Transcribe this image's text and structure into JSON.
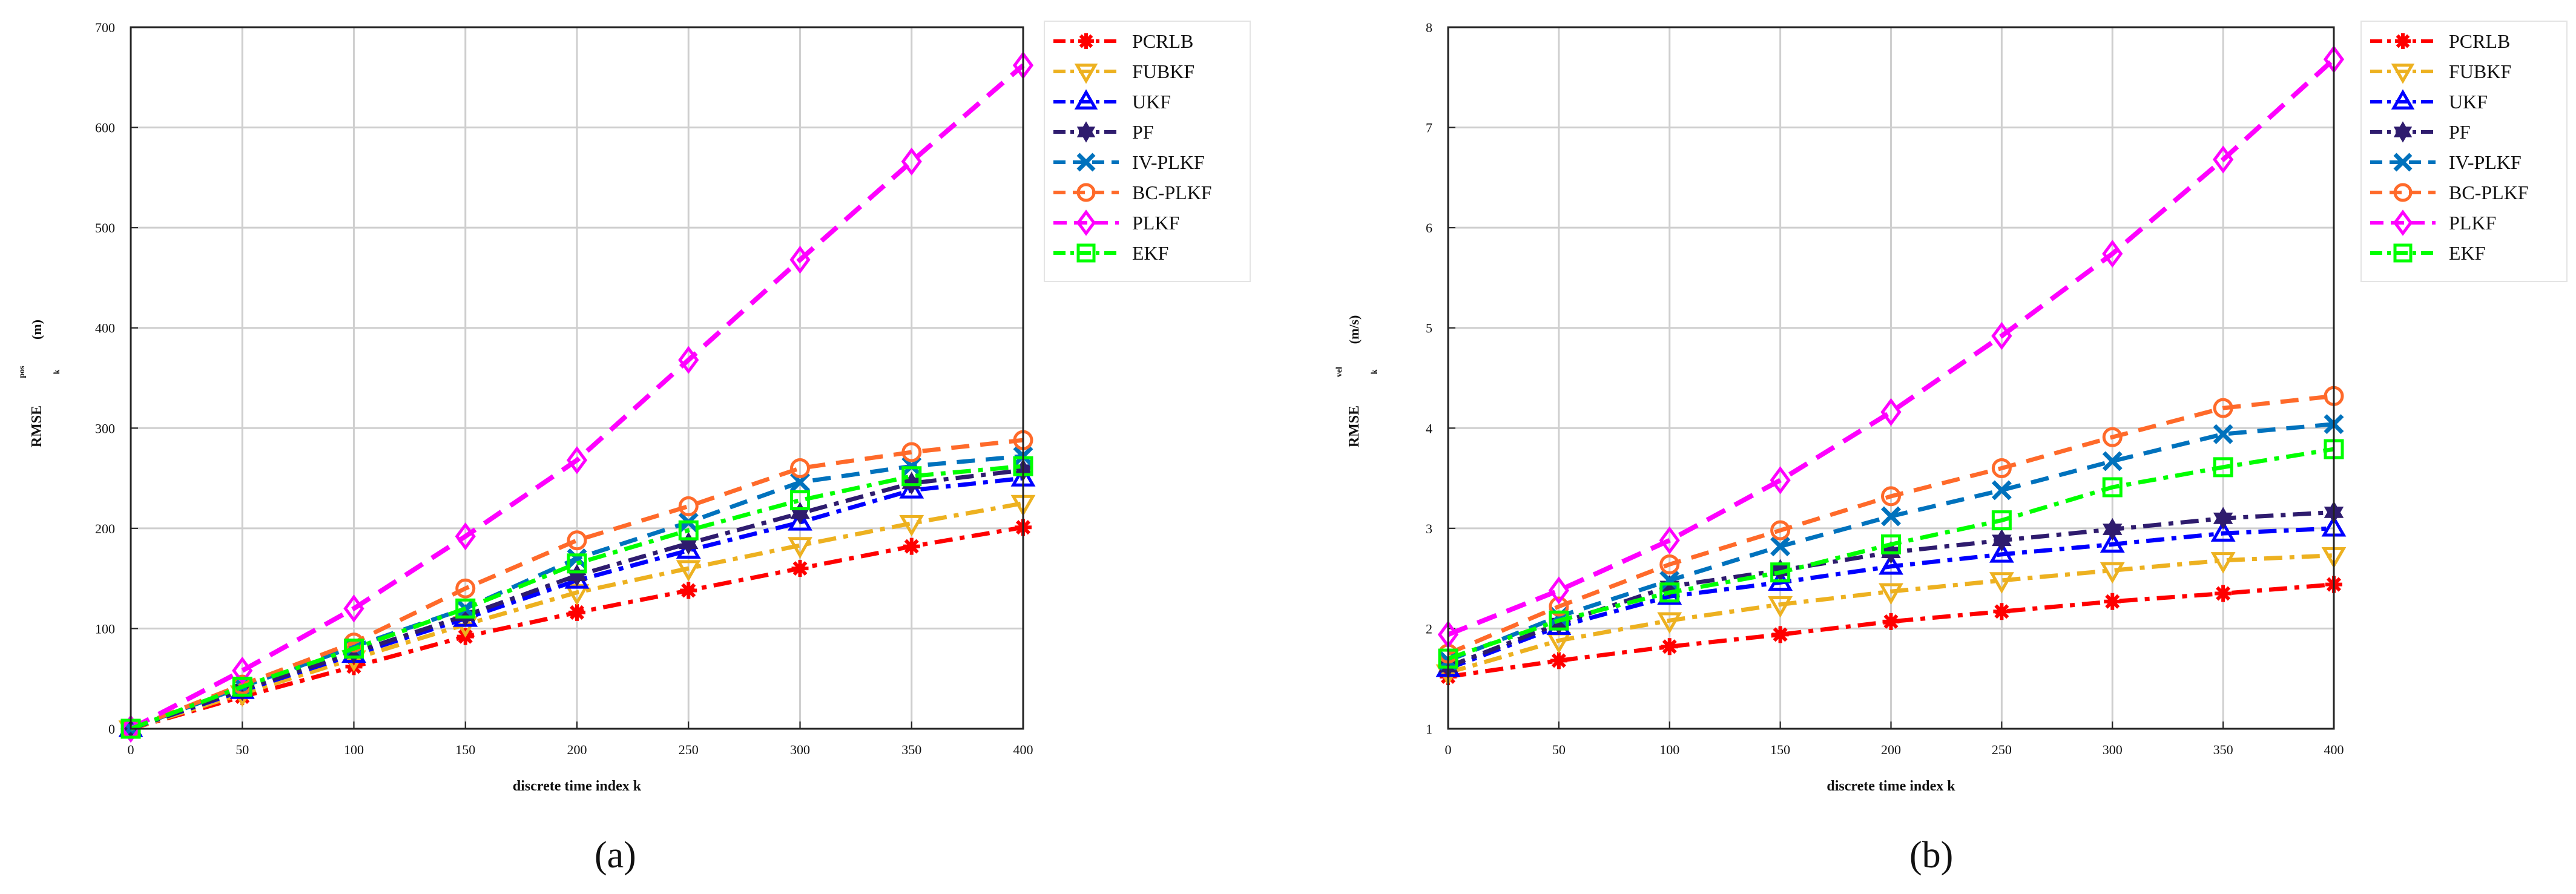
{
  "charts": [
    {
      "id": "a",
      "caption": "(a)",
      "type": "line",
      "title": "",
      "xlabel": "discrete time index k",
      "ylabel": "RMSE",
      "ylabel_sup": "pos",
      "ylabel_sub": "k",
      "ylabel_unit": "(m)",
      "xlim": [
        0,
        400
      ],
      "ylim": [
        0,
        700
      ],
      "x_ticks": [
        0,
        50,
        100,
        150,
        200,
        250,
        300,
        350,
        400
      ],
      "y_ticks": [
        0,
        100,
        200,
        300,
        400,
        500,
        600,
        700
      ],
      "grid": true,
      "legend_position": "outside-right",
      "x": [
        0,
        50,
        100,
        150,
        200,
        250,
        300,
        350,
        400
      ],
      "series": [
        {
          "name": "PCRLB",
          "color": "#ff0000",
          "marker": "asterisk",
          "values": [
            0,
            32,
            62,
            92,
            116,
            138,
            160,
            182,
            201
          ]
        },
        {
          "name": "FUBKF",
          "color": "#edb120",
          "marker": "triangle-down",
          "values": [
            0,
            35,
            70,
            104,
            136,
            160,
            183,
            205,
            225
          ]
        },
        {
          "name": "UKF",
          "color": "#0000ff",
          "marker": "triangle-up",
          "values": [
            0,
            38,
            74,
            110,
            148,
            178,
            206,
            238,
            250
          ]
        },
        {
          "name": "PF",
          "color": "#2f1c6e",
          "marker": "hexagram",
          "values": [
            0,
            39,
            76,
            113,
            153,
            185,
            215,
            245,
            258
          ]
        },
        {
          "name": "IV-PLKF",
          "color": "#0072bd",
          "marker": "x",
          "values": [
            0,
            42,
            82,
            120,
            170,
            206,
            246,
            262,
            272
          ]
        },
        {
          "name": "BC-PLKF",
          "color": "#ff6a2a",
          "marker": "circle",
          "values": [
            0,
            44,
            86,
            140,
            188,
            222,
            260,
            276,
            288
          ]
        },
        {
          "name": "PLKF",
          "color": "#ff00ff",
          "marker": "diamond",
          "values": [
            0,
            58,
            120,
            192,
            268,
            368,
            468,
            566,
            662
          ]
        },
        {
          "name": "EKF",
          "color": "#00ff00",
          "marker": "square",
          "values": [
            0,
            42,
            80,
            120,
            165,
            198,
            228,
            252,
            262
          ]
        }
      ]
    },
    {
      "id": "b",
      "caption": "(b)",
      "type": "line",
      "title": "",
      "xlabel": "discrete time index k",
      "ylabel": "RMSE",
      "ylabel_sup": "vel",
      "ylabel_sub": "k",
      "ylabel_unit": "(m/s)",
      "xlim": [
        0,
        400
      ],
      "ylim": [
        1,
        8
      ],
      "x_ticks": [
        0,
        50,
        100,
        150,
        200,
        250,
        300,
        350,
        400
      ],
      "y_ticks": [
        1,
        2,
        3,
        4,
        5,
        6,
        7,
        8
      ],
      "grid": true,
      "legend_position": "outside-right",
      "x": [
        0,
        50,
        100,
        150,
        200,
        250,
        300,
        350,
        400
      ],
      "series": [
        {
          "name": "PCRLB",
          "color": "#ff0000",
          "marker": "asterisk",
          "values": [
            1.52,
            1.68,
            1.82,
            1.94,
            2.07,
            2.17,
            2.27,
            2.35,
            2.44
          ]
        },
        {
          "name": "FUBKF",
          "color": "#edb120",
          "marker": "triangle-down",
          "values": [
            1.56,
            1.88,
            2.08,
            2.24,
            2.37,
            2.48,
            2.58,
            2.68,
            2.73
          ]
        },
        {
          "name": "UKF",
          "color": "#0000ff",
          "marker": "triangle-up",
          "values": [
            1.6,
            2.02,
            2.32,
            2.46,
            2.62,
            2.74,
            2.84,
            2.95,
            3.0
          ]
        },
        {
          "name": "PF",
          "color": "#2f1c6e",
          "marker": "hexagram",
          "values": [
            1.62,
            2.05,
            2.42,
            2.58,
            2.76,
            2.88,
            2.99,
            3.1,
            3.16
          ]
        },
        {
          "name": "IV-PLKF",
          "color": "#0072bd",
          "marker": "x",
          "values": [
            1.68,
            2.12,
            2.48,
            2.82,
            3.12,
            3.38,
            3.67,
            3.94,
            4.04
          ]
        },
        {
          "name": "BC-PLKF",
          "color": "#ff6a2a",
          "marker": "circle",
          "values": [
            1.75,
            2.22,
            2.64,
            2.98,
            3.32,
            3.6,
            3.91,
            4.2,
            4.32
          ]
        },
        {
          "name": "PLKF",
          "color": "#ff00ff",
          "marker": "diamond",
          "values": [
            1.94,
            2.38,
            2.88,
            3.48,
            4.16,
            4.92,
            5.74,
            6.68,
            7.68
          ]
        },
        {
          "name": "EKF",
          "color": "#00ff00",
          "marker": "square",
          "values": [
            1.7,
            2.08,
            2.36,
            2.56,
            2.84,
            3.08,
            3.41,
            3.61,
            3.79
          ]
        }
      ]
    }
  ]
}
